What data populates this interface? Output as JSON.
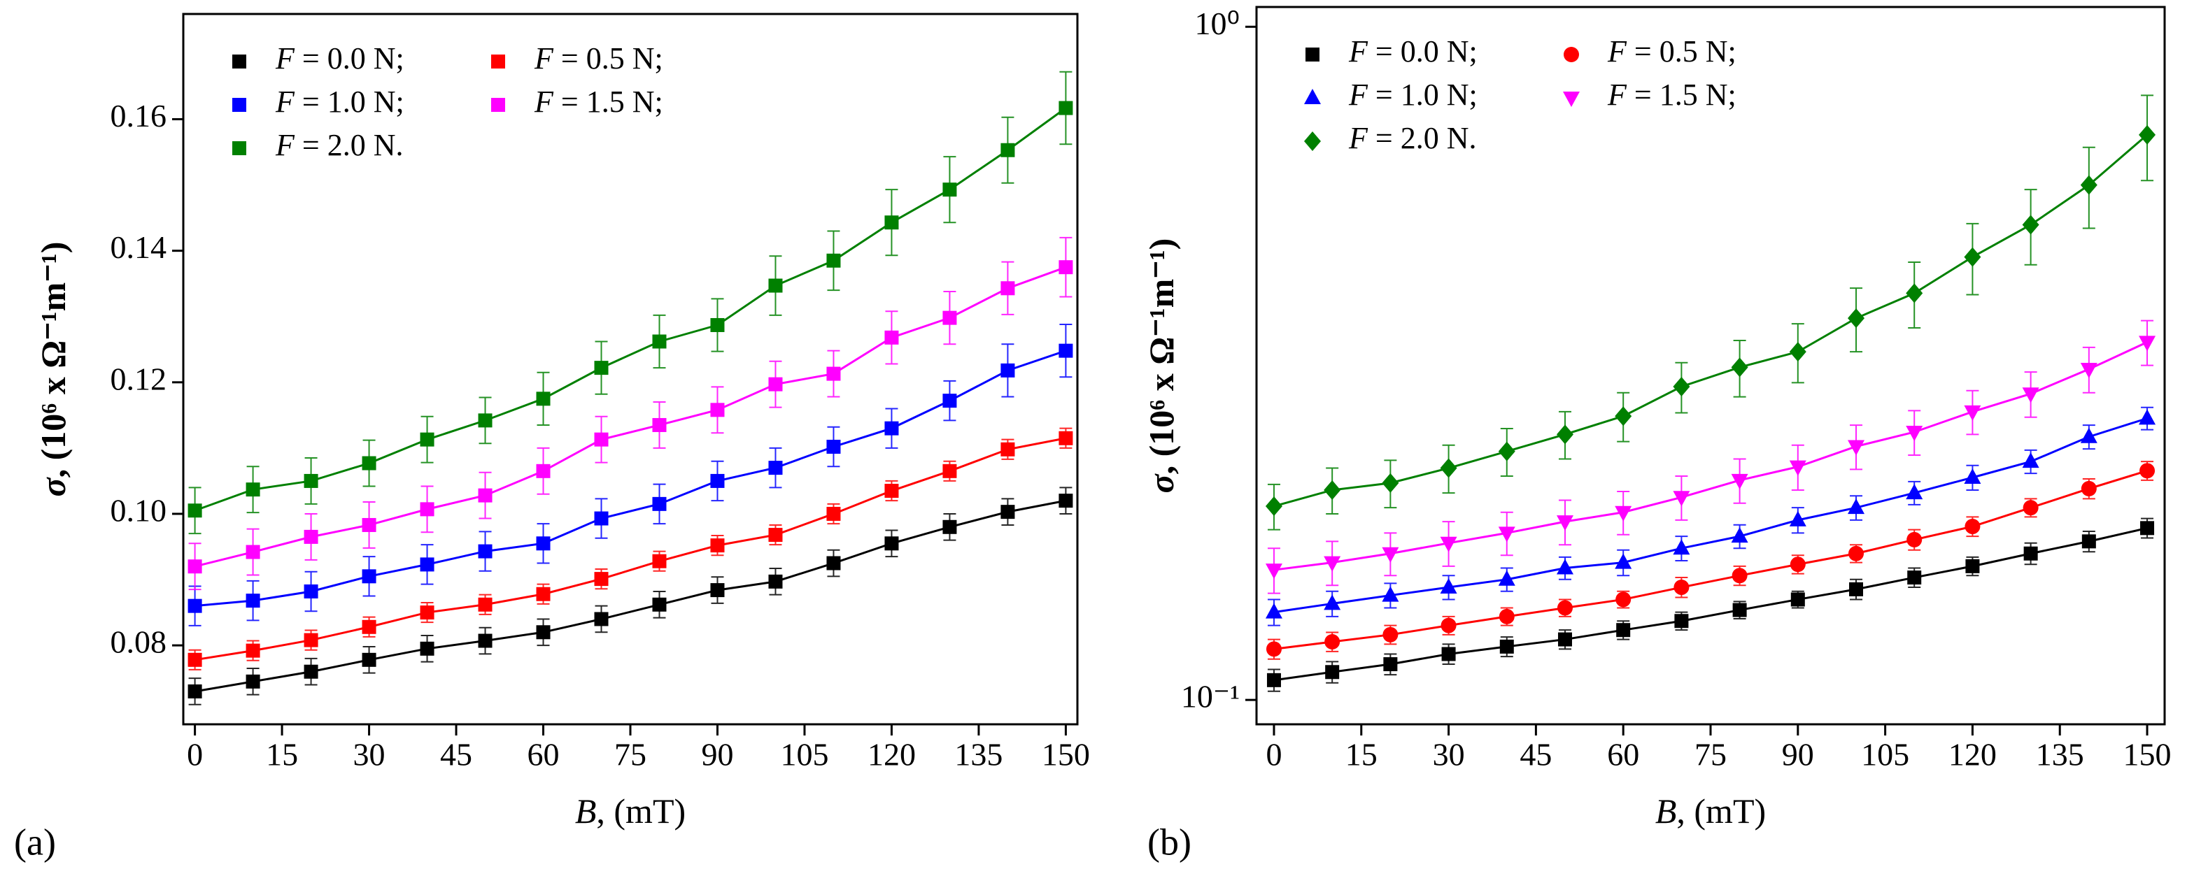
{
  "chart_data": [
    {
      "type": "scatter",
      "panel_label": "(a)",
      "x_label": "B, (mT)",
      "y_label": "σ, (10⁶ x Ω⁻¹m⁻¹)",
      "log_y": false,
      "x": [
        0,
        10,
        20,
        30,
        40,
        50,
        60,
        70,
        80,
        90,
        100,
        110,
        120,
        130,
        140,
        150
      ],
      "xlim": [
        -2,
        152
      ],
      "xticks": [
        0,
        15,
        30,
        45,
        60,
        75,
        90,
        105,
        120,
        135,
        150
      ],
      "ylim": [
        0.068,
        0.176
      ],
      "yticks": [
        0.08,
        {
          "value": 0.1,
          "label": "0.10"
        },
        0.12,
        0.14,
        0.16
      ],
      "series": [
        {
          "name": "F = 0.0 N;",
          "color": "#000000",
          "marker": "square",
          "values": [
            0.073,
            0.0745,
            0.076,
            0.0778,
            0.0795,
            0.0807,
            0.082,
            0.084,
            0.0862,
            0.0884,
            0.0897,
            0.0925,
            0.0955,
            0.098,
            0.1003,
            0.102
          ],
          "errors": [
            0.002,
            0.002,
            0.002,
            0.002,
            0.002,
            0.002,
            0.002,
            0.002,
            0.002,
            0.002,
            0.002,
            0.002,
            0.002,
            0.002,
            0.002,
            0.002
          ]
        },
        {
          "name": "F = 0.5 N;",
          "color": "#ff0000",
          "marker": "square",
          "values": [
            0.0778,
            0.0792,
            0.0808,
            0.0828,
            0.085,
            0.0862,
            0.0878,
            0.0901,
            0.0928,
            0.0952,
            0.0968,
            0.1,
            0.1035,
            0.1065,
            0.1098,
            0.1115
          ],
          "errors": [
            0.0015,
            0.0015,
            0.0015,
            0.0015,
            0.0015,
            0.0015,
            0.0015,
            0.0015,
            0.0015,
            0.0015,
            0.0015,
            0.0015,
            0.0015,
            0.0015,
            0.0015,
            0.0015
          ]
        },
        {
          "name": "F = 1.0 N;",
          "color": "#0000ff",
          "marker": "square",
          "values": [
            0.086,
            0.0868,
            0.0882,
            0.0905,
            0.0923,
            0.0943,
            0.0955,
            0.0993,
            0.1015,
            0.105,
            0.107,
            0.1102,
            0.113,
            0.1172,
            0.1218,
            0.1248
          ],
          "errors": [
            0.003,
            0.003,
            0.003,
            0.003,
            0.003,
            0.003,
            0.003,
            0.003,
            0.003,
            0.003,
            0.003,
            0.003,
            0.003,
            0.003,
            0.004,
            0.004
          ]
        },
        {
          "name": "F = 1.5 N;",
          "color": "#ff00ff",
          "marker": "square",
          "values": [
            0.092,
            0.0942,
            0.0965,
            0.0983,
            0.1007,
            0.1028,
            0.1065,
            0.1113,
            0.1135,
            0.1158,
            0.1197,
            0.1213,
            0.1268,
            0.1298,
            0.1343,
            0.1375
          ],
          "errors": [
            0.0035,
            0.0035,
            0.0035,
            0.0035,
            0.0035,
            0.0035,
            0.0035,
            0.0035,
            0.0035,
            0.0035,
            0.0035,
            0.0035,
            0.004,
            0.004,
            0.004,
            0.0045
          ]
        },
        {
          "name": "F = 2.0 N.",
          "color": "#008000",
          "marker": "square",
          "values": [
            0.1005,
            0.1037,
            0.105,
            0.1077,
            0.1113,
            0.1142,
            0.1175,
            0.1222,
            0.1262,
            0.1287,
            0.1347,
            0.1385,
            0.1443,
            0.1493,
            0.1553,
            0.1617
          ],
          "errors": [
            0.0035,
            0.0035,
            0.0035,
            0.0035,
            0.0035,
            0.0035,
            0.004,
            0.004,
            0.004,
            0.004,
            0.0045,
            0.0045,
            0.005,
            0.005,
            0.005,
            0.0055
          ]
        }
      ]
    },
    {
      "type": "scatter",
      "panel_label": "(b)",
      "x_label": "B, (mT)",
      "y_label": "σ, (10⁶ x Ω⁻¹m⁻¹)",
      "log_y": true,
      "x": [
        0,
        10,
        20,
        30,
        40,
        50,
        60,
        70,
        80,
        90,
        100,
        110,
        120,
        130,
        140,
        150
      ],
      "xlim": [
        -3,
        153
      ],
      "xticks": [
        0,
        15,
        30,
        45,
        60,
        75,
        90,
        105,
        120,
        135,
        150
      ],
      "ylim": [
        0.092,
        1.07
      ],
      "yticks": [
        {
          "value": 0.1,
          "label": "10⁻¹"
        },
        {
          "value": 1,
          "label": "10⁰"
        }
      ],
      "series": [
        {
          "name": "F = 0.0 N;",
          "color": "#000000",
          "marker": "square",
          "values": [
            0.107,
            0.11,
            0.113,
            0.117,
            0.12,
            0.123,
            0.127,
            0.131,
            0.136,
            0.141,
            0.146,
            0.152,
            0.158,
            0.165,
            0.172,
            0.18
          ],
          "errors": [
            0.004,
            0.004,
            0.004,
            0.004,
            0.004,
            0.004,
            0.004,
            0.004,
            0.004,
            0.004,
            0.005,
            0.005,
            0.005,
            0.006,
            0.006,
            0.006
          ]
        },
        {
          "name": "F = 0.5 N;",
          "color": "#ff0000",
          "marker": "circle",
          "values": [
            0.119,
            0.122,
            0.125,
            0.129,
            0.133,
            0.137,
            0.141,
            0.147,
            0.153,
            0.159,
            0.165,
            0.173,
            0.181,
            0.193,
            0.206,
            0.219
          ],
          "errors": [
            0.004,
            0.004,
            0.004,
            0.004,
            0.004,
            0.004,
            0.004,
            0.005,
            0.005,
            0.005,
            0.005,
            0.006,
            0.006,
            0.006,
            0.007,
            0.007
          ]
        },
        {
          "name": "F = 1.0 N;",
          "color": "#0000ff",
          "marker": "triangle-up",
          "values": [
            0.135,
            0.139,
            0.143,
            0.147,
            0.151,
            0.157,
            0.16,
            0.168,
            0.175,
            0.185,
            0.193,
            0.203,
            0.214,
            0.226,
            0.246,
            0.262
          ],
          "errors": [
            0.006,
            0.006,
            0.006,
            0.006,
            0.006,
            0.006,
            0.007,
            0.007,
            0.007,
            0.008,
            0.008,
            0.008,
            0.009,
            0.009,
            0.01,
            0.01
          ]
        },
        {
          "name": "F = 1.5 N;",
          "color": "#ff00ff",
          "marker": "triangle-down",
          "values": [
            0.156,
            0.16,
            0.165,
            0.171,
            0.177,
            0.184,
            0.19,
            0.2,
            0.212,
            0.222,
            0.238,
            0.25,
            0.268,
            0.285,
            0.31,
            0.34
          ],
          "errors": [
            0.012,
            0.012,
            0.012,
            0.013,
            0.013,
            0.014,
            0.014,
            0.015,
            0.016,
            0.017,
            0.018,
            0.019,
            0.02,
            0.022,
            0.024,
            0.026
          ]
        },
        {
          "name": "F = 2.0 N.",
          "color": "#008000",
          "marker": "diamond",
          "values": [
            0.194,
            0.205,
            0.21,
            0.221,
            0.234,
            0.248,
            0.264,
            0.292,
            0.312,
            0.329,
            0.369,
            0.402,
            0.455,
            0.508,
            0.582,
            0.691
          ],
          "errors": [
            0.015,
            0.016,
            0.017,
            0.018,
            0.019,
            0.02,
            0.022,
            0.025,
            0.03,
            0.033,
            0.04,
            0.045,
            0.055,
            0.065,
            0.08,
            0.1
          ]
        }
      ]
    }
  ]
}
